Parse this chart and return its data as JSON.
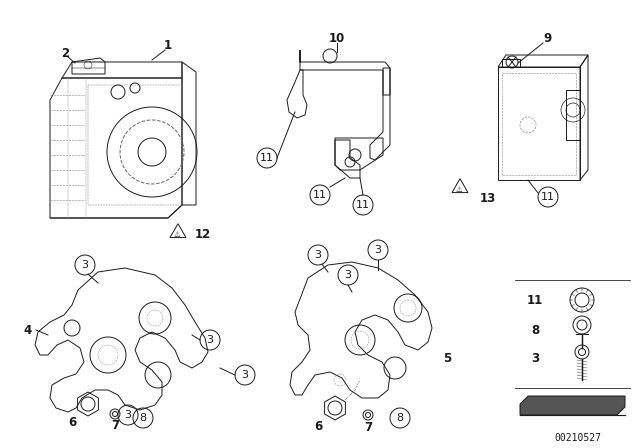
{
  "background_color": "#ffffff",
  "image_id": "00210527",
  "line_color": "#1a1a1a",
  "lw": 0.7,
  "label_fontsize": 8.5,
  "circle_label_fontsize": 8,
  "circle_label_r": 10
}
